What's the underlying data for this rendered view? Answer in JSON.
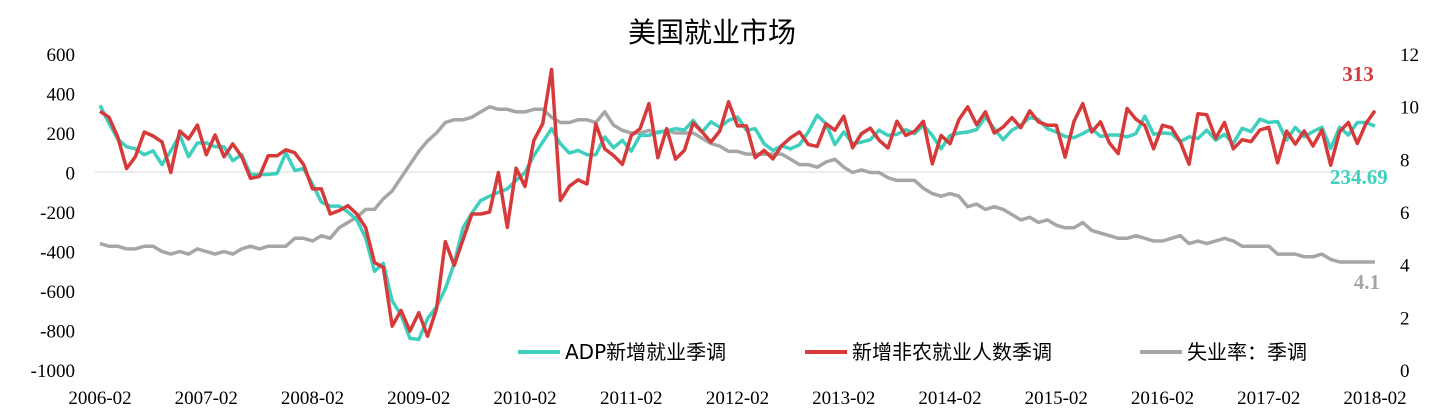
{
  "chart_data": {
    "type": "line",
    "title": "美国就业市场",
    "x_start": "2006-02",
    "x_frequency": "monthly",
    "x_tick_labels": [
      "2006-02",
      "2007-02",
      "2008-02",
      "2009-02",
      "2010-02",
      "2011-02",
      "2012-02",
      "2013-02",
      "2014-02",
      "2015-02",
      "2016-02",
      "2017-02",
      "2018-02"
    ],
    "y_left": {
      "range": [
        -1000,
        600
      ],
      "ticks": [
        "600",
        "400",
        "200",
        "0",
        "-200",
        "-400",
        "-600",
        "-800",
        "-1000"
      ]
    },
    "y_right": {
      "range": [
        0,
        12
      ],
      "ticks": [
        "12",
        "10",
        "8",
        "6",
        "4",
        "2",
        "0"
      ]
    },
    "grid": "zero line only",
    "legend_position": "bottom-inside",
    "series": [
      {
        "name": "ADP新增就业季调",
        "axis": "left",
        "color": "#3ecfbf",
        "end_label": "234.69",
        "values": [
          340,
          250,
          170,
          130,
          120,
          90,
          110,
          40,
          110,
          190,
          80,
          150,
          150,
          130,
          130,
          60,
          90,
          -10,
          -10,
          -10,
          -5,
          100,
          10,
          20,
          -60,
          -150,
          -170,
          -170,
          -200,
          -240,
          -330,
          -500,
          -460,
          -650,
          -720,
          -840,
          -845,
          -740,
          -680,
          -590,
          -460,
          -280,
          -205,
          -142,
          -120,
          -100,
          -83,
          -40,
          0,
          86,
          154,
          222,
          146,
          98,
          112,
          90,
          90,
          180,
          125,
          163,
          108,
          188,
          188,
          205,
          210,
          222,
          215,
          264,
          205,
          256,
          230,
          264,
          281,
          214,
          222,
          146,
          112,
          135,
          120,
          140,
          205,
          290,
          247,
          142,
          205,
          146,
          154,
          166,
          214,
          188,
          193,
          217,
          197,
          239,
          188,
          120,
          188,
          200,
          205,
          217,
          281,
          222,
          166,
          214,
          239,
          278,
          268,
          222,
          205,
          183,
          176,
          197,
          222,
          183,
          190,
          190,
          180,
          197,
          285,
          194,
          200,
          197,
          156,
          180,
          172,
          214,
          164,
          193,
          147,
          224,
          207,
          270,
          253,
          258,
          164,
          229,
          181,
          207,
          229,
          122,
          229,
          190,
          253,
          253,
          234.69
        ]
      },
      {
        "name": "新增非农就业人数季调",
        "axis": "left",
        "color": "#d63a3a",
        "end_label": "313",
        "values": [
          310,
          280,
          180,
          20,
          80,
          205,
          185,
          155,
          0,
          210,
          170,
          240,
          90,
          190,
          80,
          145,
          80,
          -30,
          -20,
          85,
          85,
          115,
          100,
          40,
          -83,
          -83,
          -210,
          -193,
          -168,
          -210,
          -278,
          -456,
          -480,
          -778,
          -698,
          -803,
          -710,
          -829,
          -690,
          -350,
          -470,
          -340,
          -210,
          -210,
          -200,
          0,
          -278,
          22,
          -71,
          163,
          247,
          522,
          -142,
          -70,
          -37,
          -58,
          247,
          120,
          86,
          41,
          188,
          222,
          349,
          75,
          222,
          68,
          112,
          251,
          205,
          154,
          210,
          358,
          236,
          236,
          75,
          112,
          69,
          137,
          176,
          205,
          142,
          132,
          247,
          214,
          285,
          125,
          197,
          225,
          163,
          124,
          259,
          188,
          208,
          259,
          44,
          188,
          146,
          268,
          332,
          242,
          307,
          200,
          230,
          278,
          227,
          312,
          256,
          239,
          239,
          78,
          259,
          349,
          205,
          256,
          150,
          95,
          324,
          270,
          239,
          120,
          239,
          227,
          156,
          42,
          297,
          292,
          173,
          253,
          120,
          166,
          156,
          215,
          229,
          49,
          210,
          144,
          210,
          134,
          215,
          37,
          207,
          253,
          147,
          249,
          313
        ]
      },
      {
        "name": "失业率：季调",
        "axis": "right",
        "color": "#a6a6a6",
        "end_label": "4.1",
        "values": [
          4.8,
          4.7,
          4.7,
          4.6,
          4.6,
          4.7,
          4.7,
          4.5,
          4.4,
          4.5,
          4.4,
          4.6,
          4.5,
          4.4,
          4.5,
          4.4,
          4.6,
          4.7,
          4.6,
          4.7,
          4.7,
          4.7,
          5.0,
          5.0,
          4.9,
          5.1,
          5.0,
          5.4,
          5.6,
          5.8,
          6.1,
          6.1,
          6.5,
          6.8,
          7.3,
          7.8,
          8.3,
          8.7,
          9.0,
          9.4,
          9.5,
          9.5,
          9.6,
          9.8,
          10.0,
          9.9,
          9.9,
          9.8,
          9.8,
          9.9,
          9.9,
          9.6,
          9.4,
          9.4,
          9.5,
          9.5,
          9.4,
          9.8,
          9.3,
          9.1,
          9.0,
          9.0,
          9.1,
          9.0,
          9.1,
          9.0,
          9.0,
          9.0,
          8.8,
          8.6,
          8.5,
          8.3,
          8.3,
          8.2,
          8.2,
          8.2,
          8.2,
          8.2,
          8.0,
          7.8,
          7.8,
          7.7,
          7.9,
          8.0,
          7.7,
          7.5,
          7.6,
          7.5,
          7.5,
          7.3,
          7.2,
          7.2,
          7.2,
          6.9,
          6.7,
          6.6,
          6.7,
          6.6,
          6.2,
          6.3,
          6.1,
          6.2,
          6.1,
          5.9,
          5.7,
          5.8,
          5.6,
          5.7,
          5.5,
          5.4,
          5.4,
          5.6,
          5.3,
          5.2,
          5.1,
          5.0,
          5.0,
          5.1,
          5.0,
          4.9,
          4.9,
          5.0,
          5.1,
          4.8,
          4.9,
          4.8,
          4.9,
          5.0,
          4.9,
          4.7,
          4.7,
          4.7,
          4.7,
          4.4,
          4.4,
          4.4,
          4.3,
          4.3,
          4.4,
          4.2,
          4.1,
          4.1,
          4.1,
          4.1,
          4.1
        ]
      }
    ]
  }
}
